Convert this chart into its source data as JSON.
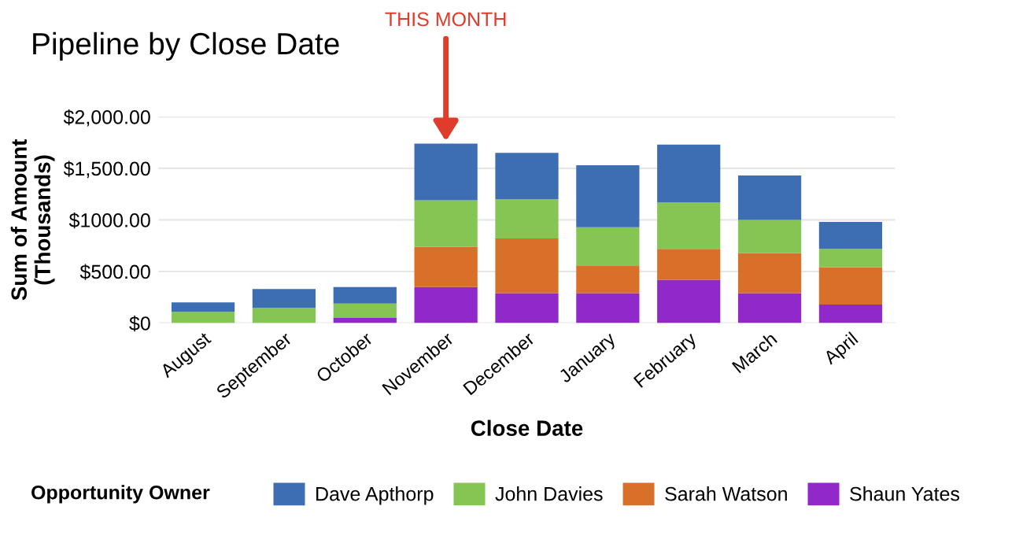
{
  "chart_data": {
    "type": "bar",
    "stacked": true,
    "title": "Pipeline by Close Date",
    "xlabel": "Close Date",
    "ylabel": "Sum of Amount\n(Thousands)",
    "legend_title": "Opportunity Owner",
    "categories": [
      "August",
      "September",
      "October",
      "November",
      "December",
      "January",
      "February",
      "March",
      "April"
    ],
    "series": [
      {
        "name": "Shaun Yates",
        "color": "#9128c9",
        "values": [
          0,
          0,
          50,
          350,
          290,
          290,
          420,
          290,
          180
        ]
      },
      {
        "name": "Sarah Watson",
        "color": "#d8702a",
        "values": [
          0,
          0,
          0,
          390,
          530,
          270,
          300,
          390,
          360
        ]
      },
      {
        "name": "John Davies",
        "color": "#84c553",
        "values": [
          110,
          150,
          140,
          450,
          380,
          370,
          450,
          320,
          180
        ]
      },
      {
        "name": "Dave Apthorp",
        "color": "#3d6eb4",
        "values": [
          90,
          180,
          160,
          550,
          450,
          600,
          560,
          430,
          260
        ]
      }
    ],
    "ylim": [
      0,
      2000
    ],
    "yticks": [
      {
        "value": 0,
        "label": "$0"
      },
      {
        "value": 500,
        "label": "$500.00"
      },
      {
        "value": 1000,
        "label": "$1000.00"
      },
      {
        "value": 1500,
        "label": "$1,500.00"
      },
      {
        "value": 2000,
        "label": "$2,000.00"
      }
    ],
    "grid": "y",
    "legend": "bottom",
    "annotations": [
      {
        "text": "THIS MONTH",
        "x": "November",
        "y": 1720
      }
    ]
  }
}
